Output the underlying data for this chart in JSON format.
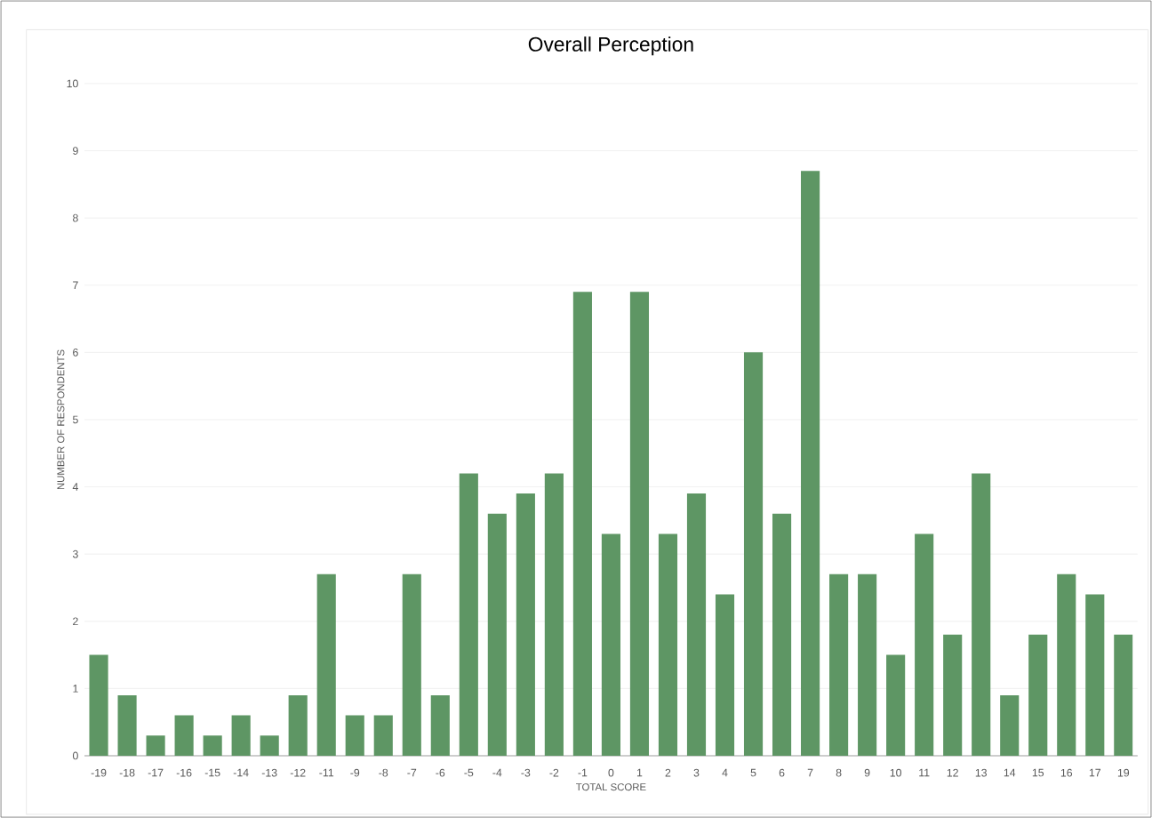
{
  "chart_data": {
    "type": "bar",
    "title": "Overall Perception",
    "xlabel": "TOTAL SCORE",
    "ylabel": "NUMBER OF RESPONDENTS",
    "categories": [
      "-19",
      "-18",
      "-17",
      "-16",
      "-15",
      "-14",
      "-13",
      "-12",
      "-11",
      "-9",
      "-8",
      "-7",
      "-6",
      "-5",
      "-4",
      "-3",
      "-2",
      "-1",
      "0",
      "1",
      "2",
      "3",
      "4",
      "5",
      "6",
      "7",
      "8",
      "9",
      "10",
      "11",
      "12",
      "13",
      "14",
      "15",
      "16",
      "17",
      "19"
    ],
    "values": [
      1.5,
      0.9,
      0.3,
      0.6,
      0.3,
      0.6,
      0.3,
      0.9,
      2.7,
      0.6,
      0.6,
      2.7,
      0.9,
      4.2,
      3.6,
      3.9,
      4.2,
      6.9,
      3.3,
      6.9,
      3.3,
      3.9,
      2.4,
      6.0,
      3.6,
      8.7,
      2.7,
      2.7,
      1.5,
      3.3,
      1.8,
      4.2,
      0.9,
      1.8,
      2.7,
      2.4,
      1.8
    ],
    "color": "#5e9664",
    "ylim": [
      0,
      10
    ],
    "yticks": [
      0,
      1,
      2,
      3,
      4,
      5,
      6,
      7,
      8,
      9,
      10
    ],
    "grid": "y"
  }
}
